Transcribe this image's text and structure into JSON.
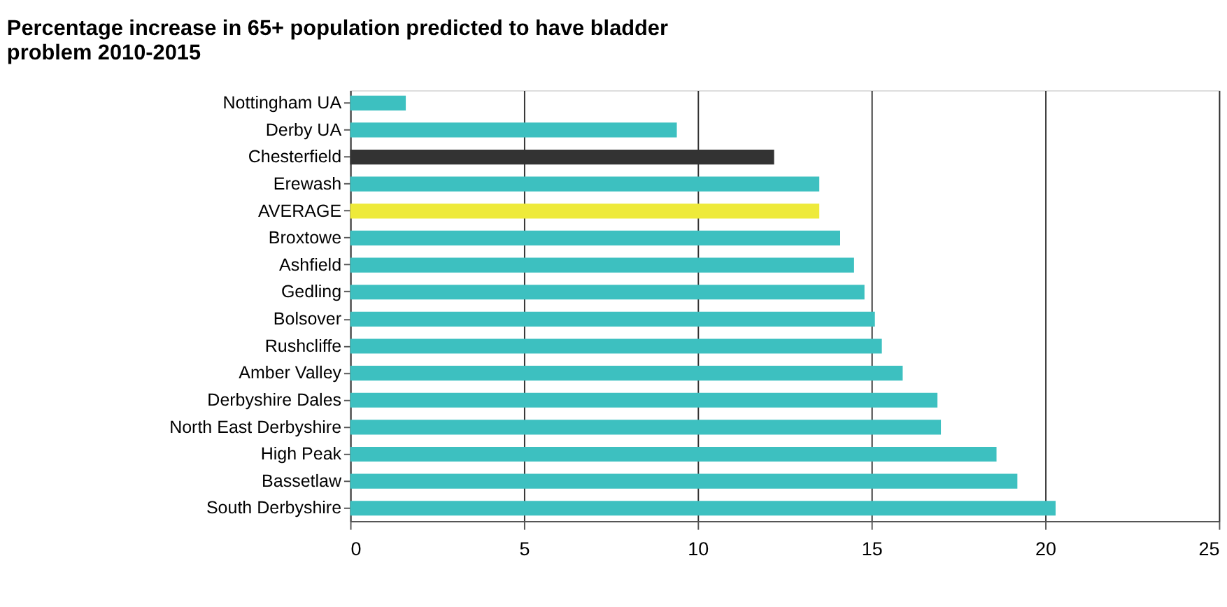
{
  "chart_data": {
    "type": "bar",
    "orientation": "horizontal",
    "title": [
      "Percentage increase in 65+ population predicted to have bladder",
      "problem  2010-2015"
    ],
    "categories": [
      "Nottingham UA",
      "Derby UA",
      "Chesterfield",
      "Erewash",
      "AVERAGE",
      "Broxtowe",
      "Ashfield",
      "Gedling",
      "Bolsover",
      "Rushcliffe",
      "Amber Valley",
      "Derbyshire Dales",
      "North East Derbyshire",
      "High Peak",
      "Bassetlaw",
      "South Derbyshire"
    ],
    "values": [
      1.6,
      9.4,
      12.2,
      13.5,
      13.5,
      14.1,
      14.5,
      14.8,
      15.1,
      15.3,
      15.9,
      16.9,
      17.0,
      18.6,
      19.2,
      20.3
    ],
    "colors": [
      "#3dc0c0",
      "#3dc0c0",
      "#333333",
      "#3dc0c0",
      "#eeea3a",
      "#3dc0c0",
      "#3dc0c0",
      "#3dc0c0",
      "#3dc0c0",
      "#3dc0c0",
      "#3dc0c0",
      "#3dc0c0",
      "#3dc0c0",
      "#3dc0c0",
      "#3dc0c0",
      "#3dc0c0"
    ],
    "xlim": [
      0,
      25
    ],
    "xticks": [
      0,
      5,
      10,
      15,
      20,
      25
    ],
    "grid": "x"
  }
}
